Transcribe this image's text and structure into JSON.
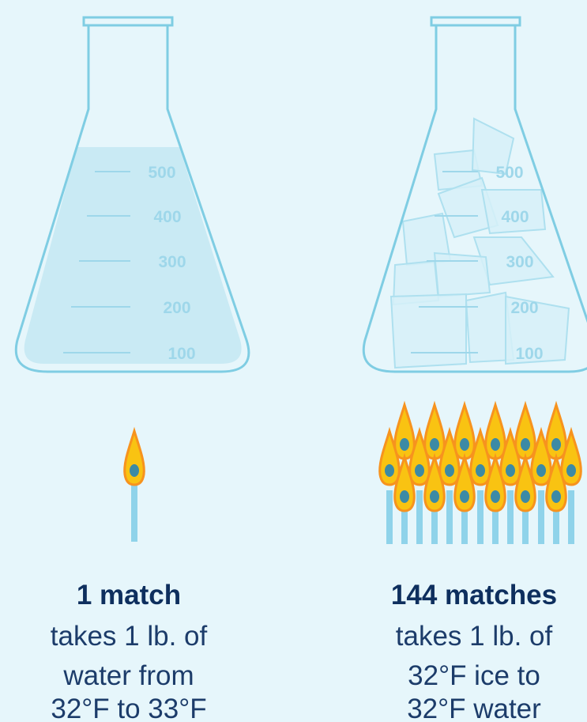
{
  "left": {
    "scale": [
      "500",
      "400",
      "300",
      "200",
      "100"
    ],
    "heading": "1 match",
    "lines": [
      "takes 1 lb. of",
      "water from",
      "32°F to 33°F"
    ]
  },
  "right": {
    "scale": [
      "500",
      "400",
      "300",
      "200",
      "100"
    ],
    "heading": "144 matches",
    "lines": [
      "takes 1 lb. of",
      "32°F ice to",
      "32°F water"
    ]
  }
}
